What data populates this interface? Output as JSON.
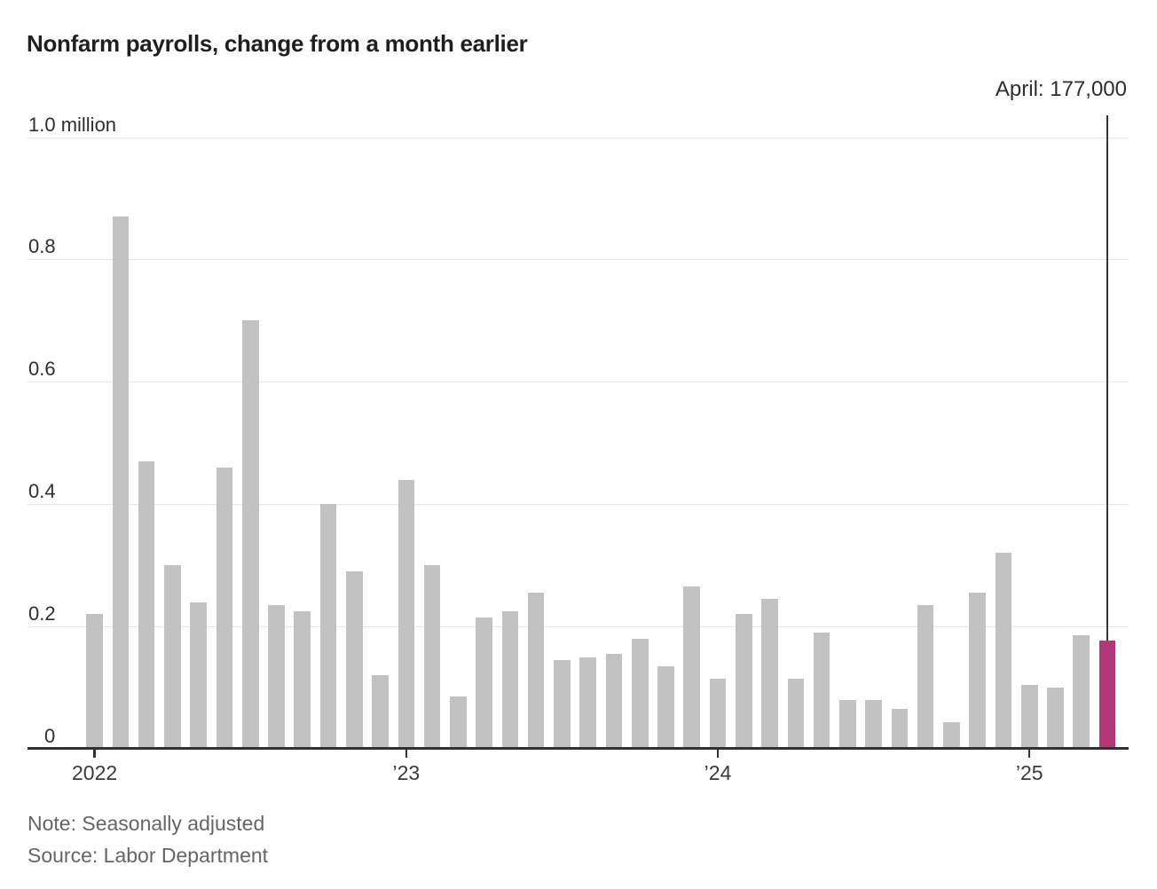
{
  "chart_data": {
    "type": "bar",
    "title": "Nonfarm payrolls, change from a month earlier",
    "ylabel": "",
    "xlabel": "",
    "unit": "million",
    "ylim": [
      0,
      1.0
    ],
    "grid": true,
    "legend": "none",
    "annotation": {
      "label": "April: 177,000",
      "value_millions": 0.177
    },
    "highlight_index": 39,
    "y_ticks": [
      {
        "value": 1.0,
        "label": "1.0 million"
      },
      {
        "value": 0.8,
        "label": "0.8"
      },
      {
        "value": 0.6,
        "label": "0.6"
      },
      {
        "value": 0.4,
        "label": "0.4"
      },
      {
        "value": 0.2,
        "label": "0.2"
      },
      {
        "value": 0.0,
        "label": "0"
      }
    ],
    "x_ticks": [
      {
        "month_index": 0,
        "label": "2022"
      },
      {
        "month_index": 12,
        "label": "’23"
      },
      {
        "month_index": 24,
        "label": "’24"
      },
      {
        "month_index": 36,
        "label": "’25"
      }
    ],
    "points": [
      {
        "month": "Jan 2022",
        "value": 0.22
      },
      {
        "month": "Feb 2022",
        "value": 0.87
      },
      {
        "month": "Mar 2022",
        "value": 0.47
      },
      {
        "month": "Apr 2022",
        "value": 0.3
      },
      {
        "month": "May 2022",
        "value": 0.24
      },
      {
        "month": "Jun 2022",
        "value": 0.46
      },
      {
        "month": "Jul 2022",
        "value": 0.7
      },
      {
        "month": "Aug 2022",
        "value": 0.235
      },
      {
        "month": "Sep 2022",
        "value": 0.225
      },
      {
        "month": "Oct 2022",
        "value": 0.4
      },
      {
        "month": "Nov 2022",
        "value": 0.29
      },
      {
        "month": "Dec 2022",
        "value": 0.12
      },
      {
        "month": "Jan 2023",
        "value": 0.44
      },
      {
        "month": "Feb 2023",
        "value": 0.3
      },
      {
        "month": "Mar 2023",
        "value": 0.085
      },
      {
        "month": "Apr 2023",
        "value": 0.215
      },
      {
        "month": "May 2023",
        "value": 0.225
      },
      {
        "month": "Jun 2023",
        "value": 0.255
      },
      {
        "month": "Jul 2023",
        "value": 0.145
      },
      {
        "month": "Aug 2023",
        "value": 0.15
      },
      {
        "month": "Sep 2023",
        "value": 0.155
      },
      {
        "month": "Oct 2023",
        "value": 0.18
      },
      {
        "month": "Nov 2023",
        "value": 0.135
      },
      {
        "month": "Dec 2023",
        "value": 0.265
      },
      {
        "month": "Jan 2024",
        "value": 0.115
      },
      {
        "month": "Feb 2024",
        "value": 0.22
      },
      {
        "month": "Mar 2024",
        "value": 0.245
      },
      {
        "month": "Apr 2024",
        "value": 0.115
      },
      {
        "month": "May 2024",
        "value": 0.19
      },
      {
        "month": "Jun 2024",
        "value": 0.08
      },
      {
        "month": "Jul 2024",
        "value": 0.08
      },
      {
        "month": "Aug 2024",
        "value": 0.065
      },
      {
        "month": "Sep 2024",
        "value": 0.235
      },
      {
        "month": "Oct 2024",
        "value": 0.044
      },
      {
        "month": "Nov 2024",
        "value": 0.255
      },
      {
        "month": "Dec 2024",
        "value": 0.32
      },
      {
        "month": "Jan 2025",
        "value": 0.105
      },
      {
        "month": "Feb 2025",
        "value": 0.1
      },
      {
        "month": "Mar 2025",
        "value": 0.185
      },
      {
        "month": "Apr 2025",
        "value": 0.177
      }
    ],
    "colors": {
      "bar": "#c2c2c2",
      "highlight": "#b13778",
      "axis": "#323232",
      "grid": "#e6e6e6",
      "annotation_line": "#333333",
      "title": "#1f1f1f",
      "tick_label": "#3a3a3a",
      "footer": "#656565"
    }
  },
  "footer": {
    "note": "Note: Seasonally adjusted",
    "source": "Source: Labor Department"
  }
}
